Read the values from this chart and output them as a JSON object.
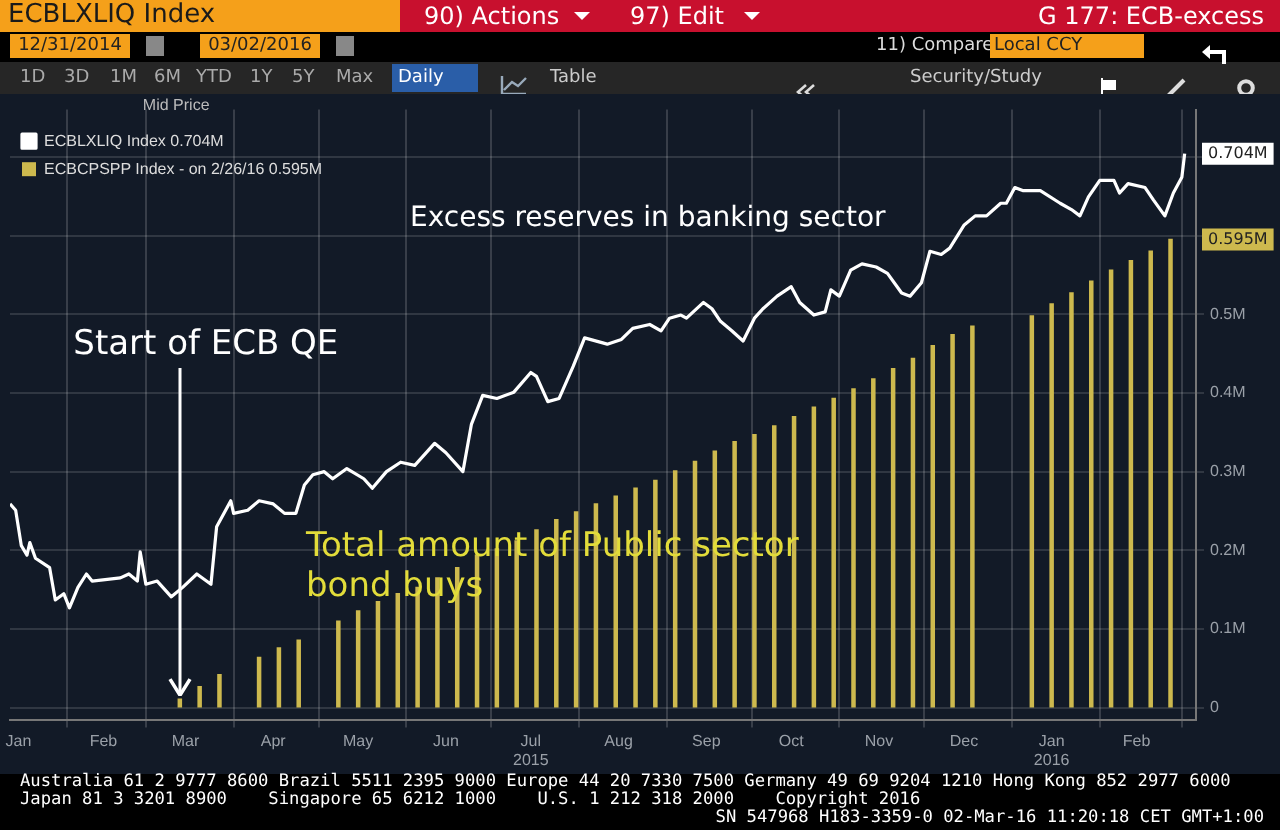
{
  "chart_data": {
    "type": "line",
    "title": "ECBLXLIQ Index",
    "legend_title": "Mid Price",
    "legend": "top left",
    "grid": true,
    "xlim": [
      "2015-01-12",
      "2016-03-06"
    ],
    "xticks": [
      {
        "value": "2015-01-15",
        "label": "Jan"
      },
      {
        "value": "2015-02-01",
        "label": null
      },
      {
        "value": "2015-02-14",
        "label": "Feb"
      },
      {
        "value": "2015-03-01",
        "label": null
      },
      {
        "value": "2015-03-15",
        "label": "Mar"
      },
      {
        "value": "2015-04-01",
        "label": null
      },
      {
        "value": "2015-04-15",
        "label": "Apr"
      },
      {
        "value": "2015-05-01",
        "label": null
      },
      {
        "value": "2015-05-15",
        "label": "May"
      },
      {
        "value": "2015-06-01",
        "label": null
      },
      {
        "value": "2015-06-15",
        "label": "Jun"
      },
      {
        "value": "2015-07-01",
        "label": null
      },
      {
        "value": "2015-07-15",
        "label": "Jul\n2015"
      },
      {
        "value": "2015-08-01",
        "label": null
      },
      {
        "value": "2015-08-15",
        "label": "Aug"
      },
      {
        "value": "2015-09-01",
        "label": null
      },
      {
        "value": "2015-09-15",
        "label": "Sep"
      },
      {
        "value": "2015-10-01",
        "label": null
      },
      {
        "value": "2015-10-15",
        "label": "Oct"
      },
      {
        "value": "2015-11-01",
        "label": null
      },
      {
        "value": "2015-11-15",
        "label": "Nov"
      },
      {
        "value": "2015-12-01",
        "label": null
      },
      {
        "value": "2015-12-15",
        "label": "Dec"
      },
      {
        "value": "2016-01-01",
        "label": null
      },
      {
        "value": "2016-01-15",
        "label": "Jan\n2016"
      },
      {
        "value": "2016-02-01",
        "label": null
      },
      {
        "value": "2016-02-14",
        "label": "Feb"
      },
      {
        "value": "2016-03-01",
        "label": null
      }
    ],
    "ylim": [
      -0.015,
      0.76
    ],
    "yticks": [
      {
        "value": 0,
        "label": "0"
      },
      {
        "value": 0.1,
        "label": "0.1M"
      },
      {
        "value": 0.2,
        "label": "0.2M"
      },
      {
        "value": 0.3,
        "label": "0.3M"
      },
      {
        "value": 0.4,
        "label": "0.4M"
      },
      {
        "value": 0.5,
        "label": "0.5M"
      },
      {
        "value": 0.6,
        "label": null
      },
      {
        "value": 0.7,
        "label": null
      }
    ],
    "series": [
      {
        "name": "ECBLXLIQ Index 0.704M",
        "color": "#ffffff",
        "x": [
          "2015-01-12",
          "2015-01-14",
          "2015-01-16",
          "2015-01-18",
          "2015-01-19",
          "2015-01-21",
          "2015-01-26",
          "2015-01-28",
          "2015-01-31",
          "2015-02-02",
          "2015-02-05",
          "2015-02-08",
          "2015-02-10",
          "2015-02-20",
          "2015-02-23",
          "2015-02-26",
          "2015-02-27",
          "2015-03-01",
          "2015-03-05",
          "2015-03-10",
          "2015-03-14",
          "2015-03-19",
          "2015-03-24",
          "2015-03-26",
          "2015-03-31",
          "2015-04-01",
          "2015-04-06",
          "2015-04-10",
          "2015-04-15",
          "2015-04-19",
          "2015-04-23",
          "2015-04-26",
          "2015-04-29",
          "2015-05-03",
          "2015-05-06",
          "2015-05-11",
          "2015-05-17",
          "2015-05-20",
          "2015-05-25",
          "2015-05-30",
          "2015-06-04",
          "2015-06-11",
          "2015-06-15",
          "2015-06-21",
          "2015-06-24",
          "2015-06-28",
          "2015-07-03",
          "2015-07-09",
          "2015-07-15",
          "2015-07-17",
          "2015-07-21",
          "2015-07-25",
          "2015-07-30",
          "2015-08-03",
          "2015-08-11",
          "2015-08-16",
          "2015-08-20",
          "2015-08-26",
          "2015-08-30",
          "2015-09-02",
          "2015-09-06",
          "2015-09-08",
          "2015-09-14",
          "2015-09-17",
          "2015-09-20",
          "2015-09-24",
          "2015-09-28",
          "2015-10-02",
          "2015-10-05",
          "2015-10-10",
          "2015-10-15",
          "2015-10-18",
          "2015-10-23",
          "2015-10-27",
          "2015-10-29",
          "2015-11-01",
          "2015-11-05",
          "2015-11-09",
          "2015-11-14",
          "2015-11-18",
          "2015-11-23",
          "2015-11-26",
          "2015-11-30",
          "2015-12-03",
          "2015-12-07",
          "2015-12-10",
          "2015-12-15",
          "2015-12-19",
          "2015-12-23",
          "2015-12-28",
          "2015-12-30",
          "2016-01-02",
          "2016-01-05",
          "2016-01-11",
          "2016-01-18",
          "2016-01-22",
          "2016-01-25",
          "2016-01-28",
          "2016-02-01",
          "2016-02-06",
          "2016-02-08",
          "2016-02-11",
          "2016-02-17",
          "2016-02-20",
          "2016-02-24",
          "2016-02-27",
          "2016-03-01",
          "2016-03-02"
        ],
        "values": [
          0.259,
          0.251,
          0.206,
          0.194,
          0.21,
          0.19,
          0.178,
          0.137,
          0.145,
          0.127,
          0.153,
          0.17,
          0.161,
          0.165,
          0.17,
          0.161,
          0.198,
          0.157,
          0.161,
          0.141,
          0.153,
          0.17,
          0.157,
          0.23,
          0.263,
          0.247,
          0.251,
          0.263,
          0.259,
          0.247,
          0.247,
          0.283,
          0.296,
          0.3,
          0.291,
          0.304,
          0.291,
          0.279,
          0.3,
          0.312,
          0.308,
          0.336,
          0.324,
          0.3,
          0.36,
          0.397,
          0.393,
          0.401,
          0.426,
          0.421,
          0.389,
          0.393,
          0.434,
          0.47,
          0.462,
          0.468,
          0.482,
          0.487,
          0.479,
          0.495,
          0.499,
          0.495,
          0.515,
          0.507,
          0.491,
          0.479,
          0.466,
          0.495,
          0.507,
          0.523,
          0.535,
          0.515,
          0.499,
          0.503,
          0.531,
          0.523,
          0.556,
          0.564,
          0.56,
          0.552,
          0.527,
          0.523,
          0.54,
          0.58,
          0.576,
          0.584,
          0.613,
          0.625,
          0.625,
          0.641,
          0.641,
          0.661,
          0.657,
          0.657,
          0.641,
          0.633,
          0.625,
          0.649,
          0.67,
          0.67,
          0.654,
          0.666,
          0.661,
          0.645,
          0.625,
          0.654,
          0.674,
          0.704
        ]
      },
      {
        "type": "bar",
        "name": "ECBCPSPP Index - on 2/26/16 0.595M",
        "color": "#cdb94e",
        "x": [
          "2015-03-13",
          "2015-03-20",
          "2015-03-27",
          "2015-04-10",
          "2015-04-17",
          "2015-04-24",
          "2015-05-08",
          "2015-05-15",
          "2015-05-22",
          "2015-05-29",
          "2015-06-05",
          "2015-06-12",
          "2015-06-19",
          "2015-06-26",
          "2015-07-03",
          "2015-07-10",
          "2015-07-17",
          "2015-07-24",
          "2015-07-31",
          "2015-08-07",
          "2015-08-14",
          "2015-08-21",
          "2015-08-28",
          "2015-09-04",
          "2015-09-11",
          "2015-09-18",
          "2015-09-25",
          "2015-10-02",
          "2015-10-09",
          "2015-10-16",
          "2015-10-23",
          "2015-10-30",
          "2015-11-06",
          "2015-11-13",
          "2015-11-20",
          "2015-11-27",
          "2015-12-04",
          "2015-12-11",
          "2015-12-18",
          "2016-01-08",
          "2016-01-15",
          "2016-01-22",
          "2016-01-29",
          "2016-02-05",
          "2016-02-12",
          "2016-02-19",
          "2016-02-26"
        ],
        "values": [
          0.011,
          0.027,
          0.042,
          0.064,
          0.076,
          0.086,
          0.11,
          0.123,
          0.135,
          0.145,
          0.153,
          0.165,
          0.178,
          0.194,
          0.202,
          0.212,
          0.226,
          0.239,
          0.249,
          0.259,
          0.269,
          0.279,
          0.289,
          0.301,
          0.313,
          0.326,
          0.338,
          0.347,
          0.358,
          0.37,
          0.382,
          0.393,
          0.405,
          0.418,
          0.431,
          0.444,
          0.46,
          0.474,
          0.485,
          0.498,
          0.513,
          0.527,
          0.542,
          0.556,
          0.568,
          0.58,
          0.595
        ]
      }
    ],
    "annotations": [
      "Excess reserves in banking sector",
      {
        "text": "Start of ECB QE",
        "x": "2015-03-13",
        "y": 0.011
      },
      "Total amount of Public sector bond buys",
      "0.704M",
      "0.595M",
      "90) Actions",
      "97) Edit",
      "G 177: ECB-excess",
      "12/31/2014",
      "03/02/2016",
      "11) Compare",
      "Local CCY",
      "1D",
      "3D",
      "1M",
      "6M",
      "YTD",
      "1Y",
      "5Y",
      "Max",
      "Daily",
      "Table",
      "Security/Study",
      "Australia 61 2 9777 8600 Brazil 5511 2395 9000 Europe 44 20 7330 7500 Germany 49 69 9204 1210 Hong Kong 852 2977 6000",
      "Japan 81 3 3201 8900    Singapore 65 6212 1000    U.S. 1 212 318 2000    Copyright 2016",
      "SN 547968 H183-3359-0 02-Mar-16 11:20:18 CET GMT+1:00"
    ]
  }
}
